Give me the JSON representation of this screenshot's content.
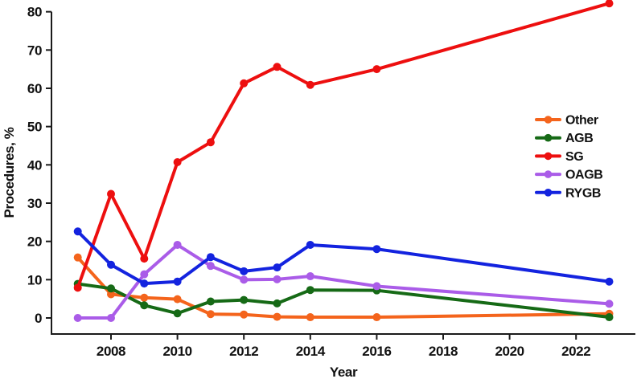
{
  "figure": {
    "y_axis_title": "Procedures, %",
    "x_axis_title": "Year"
  },
  "chart_data": {
    "type": "line",
    "x": [
      2007,
      2008,
      2009,
      2010,
      2011,
      2012,
      2013,
      2014,
      2016,
      2023
    ],
    "series": [
      {
        "name": "Other",
        "color": "#F4641C",
        "values": [
          15.8,
          6.2,
          5.3,
          4.9,
          1.0,
          0.9,
          0.3,
          0.2,
          0.2,
          1.1
        ]
      },
      {
        "name": "AGB",
        "color": "#166A16",
        "values": [
          8.9,
          7.7,
          3.3,
          1.2,
          4.3,
          4.7,
          3.8,
          7.3,
          7.2,
          0.2
        ]
      },
      {
        "name": "SG",
        "color": "#ED0F0F",
        "values": [
          7.9,
          32.4,
          15.5,
          40.7,
          45.9,
          61.3,
          65.6,
          60.9,
          65.0,
          82.2
        ]
      },
      {
        "name": "OAGB",
        "color": "#AA5CE8",
        "values": [
          0.0,
          0.0,
          11.4,
          19.1,
          13.6,
          10.0,
          10.1,
          10.9,
          8.3,
          3.7
        ]
      },
      {
        "name": "RYGB",
        "color": "#1323DF",
        "values": [
          22.6,
          13.9,
          9.0,
          9.5,
          15.9,
          12.2,
          13.2,
          19.1,
          18.0,
          9.5
        ]
      }
    ],
    "xlabel": "Year",
    "ylabel": "Procedures, %",
    "x_ticks": [
      2008,
      2010,
      2012,
      2014,
      2016,
      2018,
      2020,
      2022
    ],
    "y_ticks": [
      0,
      10,
      20,
      30,
      40,
      50,
      60,
      70,
      80
    ],
    "xlim": [
      2006.2,
      2023.8
    ],
    "ylim": [
      -4.2,
      83.1
    ],
    "grid": false,
    "legend_position": "right-middle",
    "axis_color": "#1A1A1A"
  }
}
